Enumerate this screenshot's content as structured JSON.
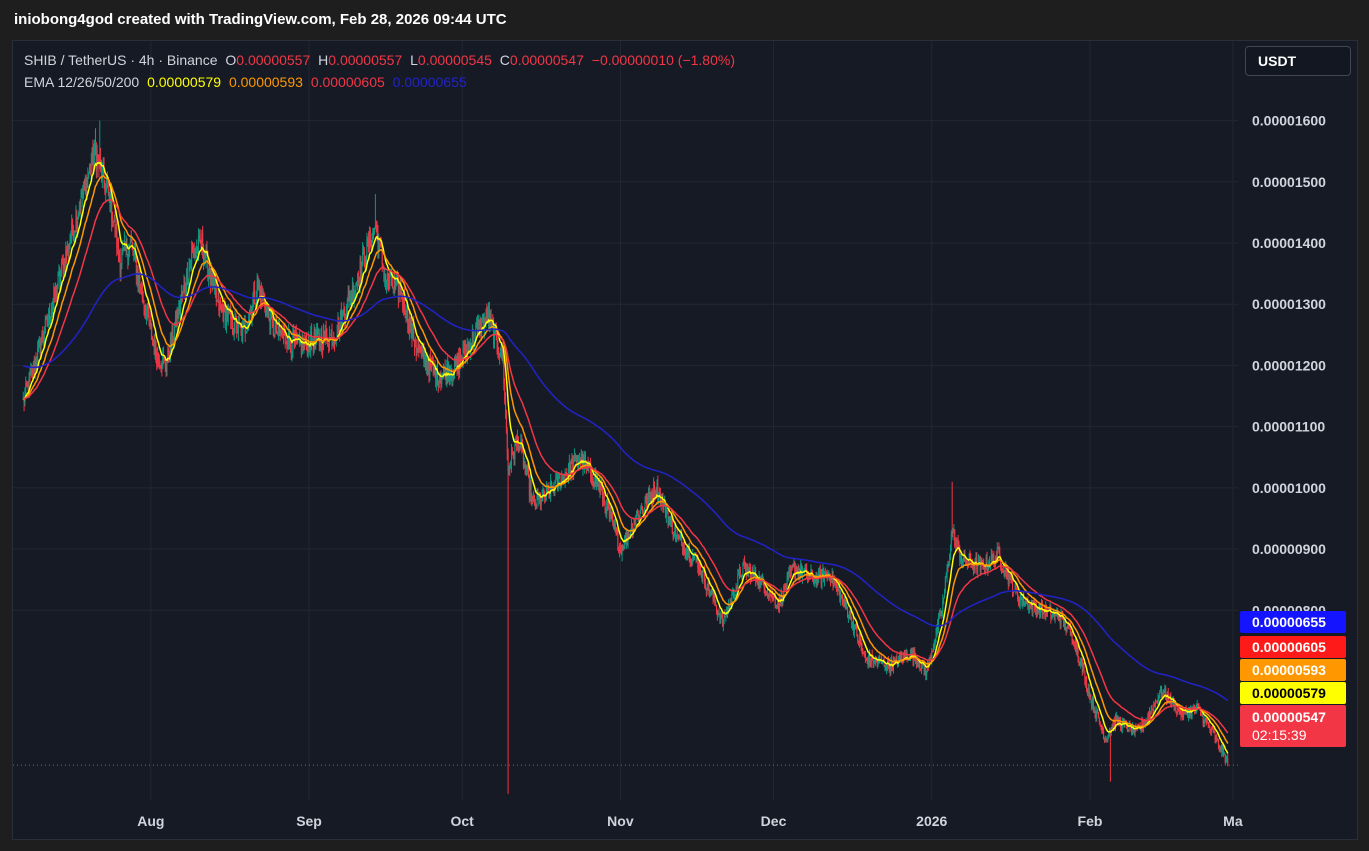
{
  "header": {
    "credit": "iniobong4god created with TradingView.com, Feb 28, 2026 09:44 UTC"
  },
  "legend": {
    "symbol": "SHIB / TetherUS · 4h · Binance",
    "o_label": "O",
    "o_value": "0.00000557",
    "h_label": "H",
    "h_value": "0.00000557",
    "l_label": "L",
    "l_value": "0.00000545",
    "c_label": "C",
    "c_value": "0.00000547",
    "change": "−0.00000010 (−1.80%)",
    "ema_label": "EMA 12/26/50/200",
    "ema_values": [
      "0.00000579",
      "0.00000593",
      "0.00000605",
      "0.00000655"
    ]
  },
  "currency_button": "USDT",
  "price_tags": {
    "ema200": "0.00000655",
    "ema50": "0.00000605",
    "ema26": "0.00000593",
    "ema12": "0.00000579",
    "last": "0.00000547",
    "countdown": "02:15:39"
  },
  "colors": {
    "background": "#161a25",
    "up": "#089981",
    "down": "#f23645",
    "ema12": "#ffff00",
    "ema26": "#ff9800",
    "ema50": "#f23645",
    "ema200": "#2123c9",
    "grid": "#232733"
  },
  "chart_data": {
    "type": "candlestick",
    "symbol": "SHIB/USDT",
    "interval": "4h",
    "exchange": "Binance",
    "x_ticks": [
      "Aug",
      "Sep",
      "Oct",
      "Nov",
      "Dec",
      "2026",
      "Feb",
      "Ma"
    ],
    "y_ticks": [
      "0.00001600",
      "0.00001500",
      "0.00001400",
      "0.00001300",
      "0.00001200",
      "0.00001100",
      "0.00001000",
      "0.00000900",
      "0.00000800"
    ],
    "y_tick_values": [
      1.6e-05,
      1.5e-05,
      1.4e-05,
      1.3e-05,
      1.2e-05,
      1.1e-05,
      1e-05,
      9e-06,
      8e-06
    ],
    "ylim": [
      4.9e-06,
      1.73e-05
    ],
    "price_anchors": [
      {
        "date": "2025-07-07",
        "close": 1.14e-05
      },
      {
        "date": "2025-07-12",
        "close": 1.28e-05
      },
      {
        "date": "2025-07-16",
        "close": 1.4e-05
      },
      {
        "date": "2025-07-21",
        "close": 1.55e-05
      },
      {
        "date": "2025-07-24",
        "close": 1.47e-05
      },
      {
        "date": "2025-07-26",
        "close": 1.37e-05
      },
      {
        "date": "2025-07-28",
        "close": 1.4e-05
      },
      {
        "date": "2025-08-02",
        "close": 1.22e-05
      },
      {
        "date": "2025-08-04",
        "close": 1.2e-05
      },
      {
        "date": "2025-08-09",
        "close": 1.38e-05
      },
      {
        "date": "2025-08-11",
        "close": 1.4e-05
      },
      {
        "date": "2025-08-14",
        "close": 1.3e-05
      },
      {
        "date": "2025-08-19",
        "close": 1.25e-05
      },
      {
        "date": "2025-08-22",
        "close": 1.33e-05
      },
      {
        "date": "2025-08-25",
        "close": 1.26e-05
      },
      {
        "date": "2025-08-30",
        "close": 1.23e-05
      },
      {
        "date": "2025-09-06",
        "close": 1.25e-05
      },
      {
        "date": "2025-09-10",
        "close": 1.33e-05
      },
      {
        "date": "2025-09-14",
        "close": 1.43e-05
      },
      {
        "date": "2025-09-16",
        "close": 1.34e-05
      },
      {
        "date": "2025-09-19",
        "close": 1.32e-05
      },
      {
        "date": "2025-09-22",
        "close": 1.23e-05
      },
      {
        "date": "2025-09-26",
        "close": 1.18e-05
      },
      {
        "date": "2025-09-30",
        "close": 1.2e-05
      },
      {
        "date": "2025-10-04",
        "close": 1.26e-05
      },
      {
        "date": "2025-10-06",
        "close": 1.28e-05
      },
      {
        "date": "2025-10-09",
        "close": 1.21e-05
      },
      {
        "date": "2025-10-10",
        "close": 1.03e-05
      },
      {
        "date": "2025-10-12",
        "close": 1.08e-05
      },
      {
        "date": "2025-10-15",
        "close": 9.7e-06
      },
      {
        "date": "2025-10-20",
        "close": 1.01e-05
      },
      {
        "date": "2025-10-24",
        "close": 1.05e-05
      },
      {
        "date": "2025-10-28",
        "close": 1e-05
      },
      {
        "date": "2025-11-01",
        "close": 9e-06
      },
      {
        "date": "2025-11-04",
        "close": 9.5e-06
      },
      {
        "date": "2025-11-08",
        "close": 1e-05
      },
      {
        "date": "2025-11-12",
        "close": 9.2e-06
      },
      {
        "date": "2025-11-16",
        "close": 8.8e-06
      },
      {
        "date": "2025-11-21",
        "close": 7.8e-06
      },
      {
        "date": "2025-11-25",
        "close": 8.7e-06
      },
      {
        "date": "2025-11-28",
        "close": 8.5e-06
      },
      {
        "date": "2025-12-02",
        "close": 8.1e-06
      },
      {
        "date": "2025-12-05",
        "close": 8.7e-06
      },
      {
        "date": "2025-12-09",
        "close": 8.5e-06
      },
      {
        "date": "2025-12-12",
        "close": 8.6e-06
      },
      {
        "date": "2025-12-16",
        "close": 7.9e-06
      },
      {
        "date": "2025-12-19",
        "close": 7.2e-06
      },
      {
        "date": "2025-12-24",
        "close": 7.1e-06
      },
      {
        "date": "2025-12-28",
        "close": 7.3e-06
      },
      {
        "date": "2025-12-31",
        "close": 7e-06
      },
      {
        "date": "2026-01-03",
        "close": 8e-06
      },
      {
        "date": "2026-01-05",
        "close": 9.3e-06
      },
      {
        "date": "2026-01-07",
        "close": 8.8e-06
      },
      {
        "date": "2026-01-11",
        "close": 8.7e-06
      },
      {
        "date": "2026-01-14",
        "close": 8.9e-06
      },
      {
        "date": "2026-01-18",
        "close": 8.2e-06
      },
      {
        "date": "2026-01-22",
        "close": 8e-06
      },
      {
        "date": "2026-01-26",
        "close": 7.9e-06
      },
      {
        "date": "2026-01-29",
        "close": 7.5e-06
      },
      {
        "date": "2026-02-01",
        "close": 6.6e-06
      },
      {
        "date": "2026-02-04",
        "close": 5.9e-06
      },
      {
        "date": "2026-02-06",
        "close": 6.2e-06
      },
      {
        "date": "2026-02-10",
        "close": 6e-06
      },
      {
        "date": "2026-02-12",
        "close": 6.2e-06
      },
      {
        "date": "2026-02-15",
        "close": 6.7e-06
      },
      {
        "date": "2026-02-19",
        "close": 6.3e-06
      },
      {
        "date": "2026-02-22",
        "close": 6.4e-06
      },
      {
        "date": "2026-02-25",
        "close": 6e-06
      },
      {
        "date": "2026-02-28",
        "close": 5.5e-06
      }
    ],
    "spikes": [
      {
        "date": "2025-10-10",
        "low": 5e-06
      },
      {
        "date": "2026-02-05",
        "low": 5.2e-06
      },
      {
        "date": "2026-01-05",
        "high": 1.01e-05
      },
      {
        "date": "2025-09-14",
        "high": 1.48e-05
      },
      {
        "date": "2025-07-22",
        "high": 1.6e-05
      }
    ],
    "last_ohlc": {
      "open": 5.57e-06,
      "high": 5.57e-06,
      "low": 5.45e-06,
      "close": 5.47e-06
    },
    "ema_periods": [
      12,
      26,
      50,
      200
    ]
  }
}
